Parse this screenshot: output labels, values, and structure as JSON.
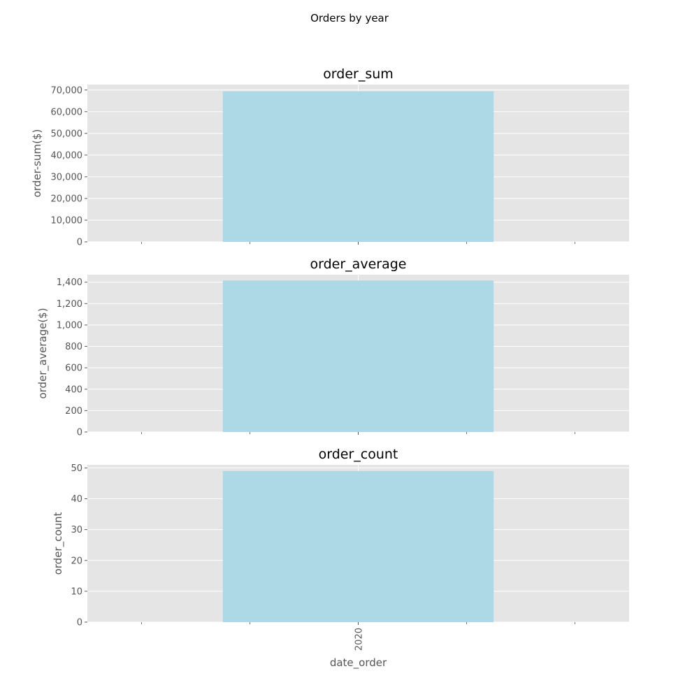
{
  "figure": {
    "suptitle": "Orders by year"
  },
  "chart_data": [
    {
      "type": "bar",
      "title": "order_sum",
      "ylabel": "order-sum($)",
      "xlabel": "",
      "categories": [
        "2020"
      ],
      "values": [
        69400
      ],
      "ylim": [
        0,
        72500
      ],
      "yticks": [
        0,
        10000,
        20000,
        30000,
        40000,
        50000,
        60000,
        70000
      ],
      "ytick_labels": [
        "0",
        "10,000",
        "20,000",
        "30,000",
        "40,000",
        "50,000",
        "60,000",
        "70,000"
      ],
      "show_xtick_labels": false,
      "bar_color": "#add8e6",
      "grid": true
    },
    {
      "type": "bar",
      "title": "order_average",
      "ylabel": "order_average($)",
      "xlabel": "",
      "categories": [
        "2020"
      ],
      "values": [
        1416
      ],
      "ylim": [
        0,
        1470
      ],
      "yticks": [
        0,
        200,
        400,
        600,
        800,
        1000,
        1200,
        1400
      ],
      "ytick_labels": [
        "0",
        "200",
        "400",
        "600",
        "800",
        "1,000",
        "1,200",
        "1,400"
      ],
      "show_xtick_labels": false,
      "bar_color": "#add8e6",
      "grid": true
    },
    {
      "type": "bar",
      "title": "order_count",
      "ylabel": "order_count",
      "xlabel": "date_order",
      "categories": [
        "2020"
      ],
      "values": [
        49
      ],
      "ylim": [
        0,
        51
      ],
      "yticks": [
        0,
        10,
        20,
        30,
        40,
        50
      ],
      "ytick_labels": [
        "0",
        "10",
        "20",
        "30",
        "40",
        "50"
      ],
      "show_xtick_labels": true,
      "bar_color": "#add8e6",
      "grid": true
    }
  ],
  "colors": {
    "axes_bg": "#e5e5e5",
    "grid": "#ffffff",
    "bar": "#add8e6",
    "text": "#555555"
  }
}
